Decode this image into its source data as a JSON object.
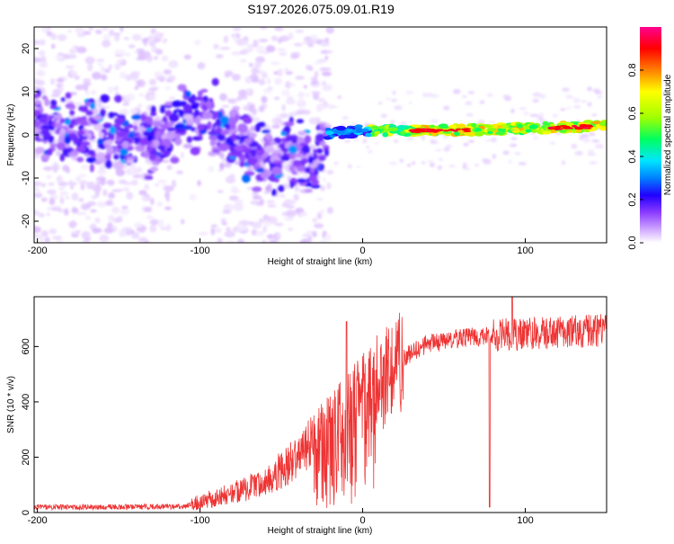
{
  "title": "S197.2026.075.09.01.R19",
  "chart_data": [
    {
      "type": "heatmap",
      "xlabel": "Height of straight line (km)",
      "ylabel": "Frequency (Hz)",
      "xlim": [
        -202,
        150
      ],
      "ylim": [
        -25,
        25
      ],
      "xticks": [
        -200,
        -100,
        0,
        100
      ],
      "yticks": [
        -20,
        -10,
        0,
        10,
        20
      ],
      "colorbar": {
        "label": "Normalized spectral amplitude",
        "range": [
          0,
          1
        ],
        "ticks": [
          0.0,
          0.2,
          0.4,
          0.6,
          0.8
        ],
        "tick_labels": [
          "0.0",
          "0.2",
          "0.4",
          "0.6",
          "0.8"
        ],
        "colors": [
          "#ffffff",
          "#d9b8ff",
          "#8c3cff",
          "#2200ff",
          "#0080ff",
          "#00e5ff",
          "#00ff60",
          "#a0ff00",
          "#ffff00",
          "#ff8000",
          "#ff0000",
          "#ff0090"
        ]
      },
      "ridge": [
        {
          "x": -200,
          "y": 2
        },
        {
          "x": -180,
          "y": 1
        },
        {
          "x": -160,
          "y": 0
        },
        {
          "x": -140,
          "y": -1
        },
        {
          "x": -120,
          "y": -1
        },
        {
          "x": -105,
          "y": 4
        },
        {
          "x": -95,
          "y": 5
        },
        {
          "x": -85,
          "y": 0
        },
        {
          "x": -70,
          "y": -4
        },
        {
          "x": -55,
          "y": -6
        },
        {
          "x": -40,
          "y": -4
        },
        {
          "x": -30,
          "y": -7
        },
        {
          "x": -25,
          "y": 0
        },
        {
          "x": 0,
          "y": 1
        },
        {
          "x": 50,
          "y": 1
        },
        {
          "x": 100,
          "y": 1.5
        },
        {
          "x": 150,
          "y": 2
        }
      ]
    },
    {
      "type": "line",
      "xlabel": "Height of straight line (km)",
      "ylabel": "SNR (10 * v/v)",
      "xlim": [
        -202,
        150
      ],
      "ylim": [
        0,
        780
      ],
      "xticks": [
        -200,
        -100,
        0,
        100
      ],
      "yticks": [
        0,
        200,
        400,
        600
      ],
      "color": "#ee3333",
      "envelope": [
        {
          "x": -202,
          "y": 20
        },
        {
          "x": -150,
          "y": 20
        },
        {
          "x": -110,
          "y": 22
        },
        {
          "x": -100,
          "y": 40
        },
        {
          "x": -80,
          "y": 70
        },
        {
          "x": -60,
          "y": 110
        },
        {
          "x": -40,
          "y": 200
        },
        {
          "x": -25,
          "y": 290
        },
        {
          "x": -10,
          "y": 360
        },
        {
          "x": 0,
          "y": 420
        },
        {
          "x": 10,
          "y": 470
        },
        {
          "x": 25,
          "y": 560
        },
        {
          "x": 40,
          "y": 610
        },
        {
          "x": 60,
          "y": 630
        },
        {
          "x": 80,
          "y": 640
        },
        {
          "x": 100,
          "y": 645
        },
        {
          "x": 150,
          "y": 660
        }
      ],
      "dips": [
        {
          "x": 78,
          "y": 20
        },
        {
          "x": 92,
          "y": 530
        }
      ],
      "spikes": [
        {
          "x": -10,
          "y": 690
        },
        {
          "x": 92,
          "y": 780
        }
      ]
    }
  ]
}
